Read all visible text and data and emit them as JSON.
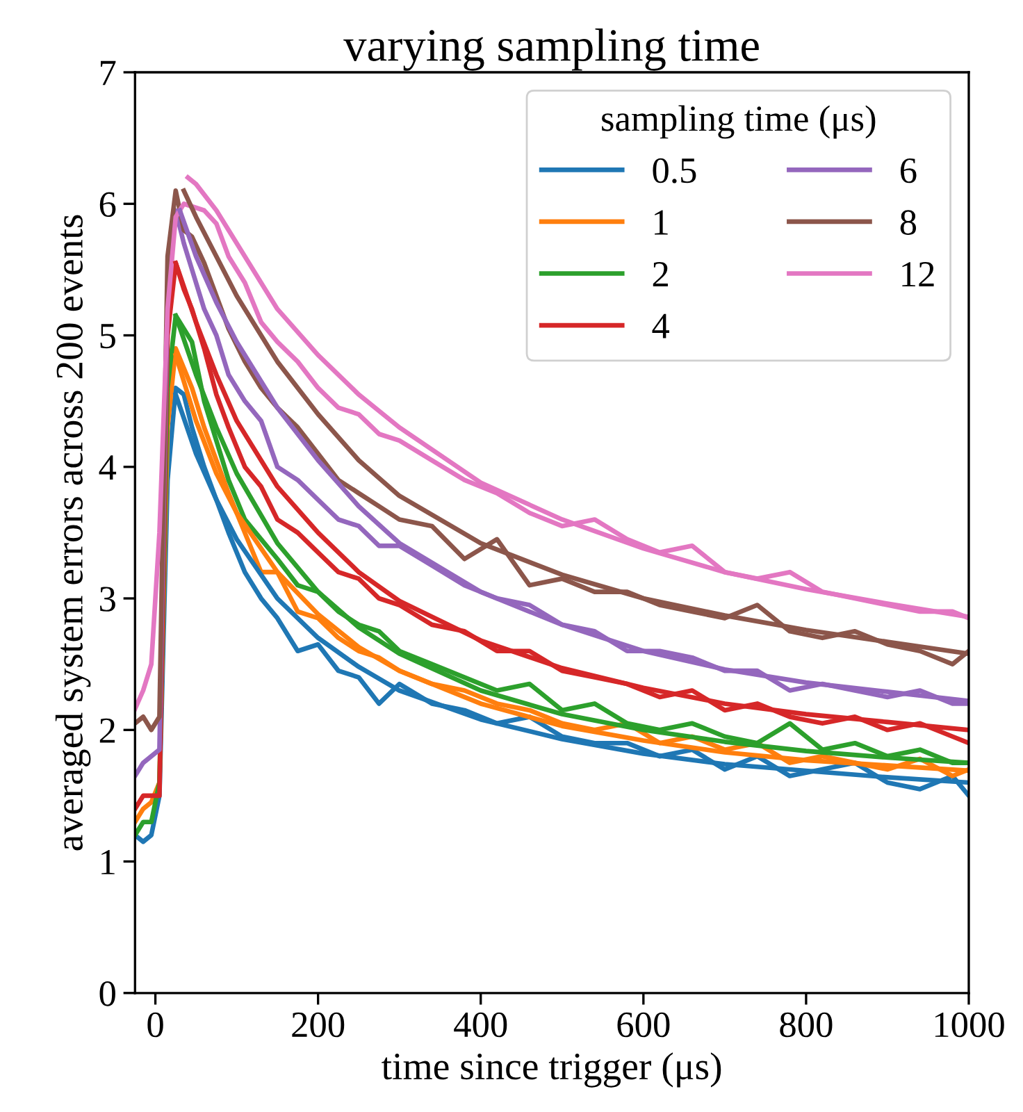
{
  "chart_data": {
    "type": "line",
    "title": "varying sampling time",
    "xlabel": "time since trigger (μs)",
    "ylabel": "averaged system errors across 200 events",
    "legend_title": "sampling time (μs)",
    "legend": "top right",
    "grid": false,
    "marker": "none",
    "line_style": "solid",
    "xlim": [
      -25,
      1000
    ],
    "ylim": [
      0,
      7
    ],
    "xticks": [
      0,
      200,
      400,
      600,
      800,
      1000
    ],
    "yticks": [
      0,
      1,
      2,
      3,
      4,
      5,
      6,
      7
    ],
    "series": [
      {
        "name": "0.5",
        "color": "#1f77b4",
        "x": [
          -25,
          -15,
          -5,
          5,
          15,
          25,
          35,
          45,
          60,
          75,
          90,
          110,
          130,
          150,
          175,
          200,
          225,
          250,
          275,
          300,
          340,
          380,
          420,
          460,
          500,
          540,
          580,
          620,
          660,
          700,
          740,
          780,
          820,
          860,
          900,
          940,
          980,
          1000
        ],
        "values": [
          1.2,
          1.15,
          1.2,
          1.5,
          3.9,
          4.6,
          4.55,
          4.3,
          4.0,
          3.75,
          3.5,
          3.2,
          3.0,
          2.85,
          2.6,
          2.65,
          2.45,
          2.4,
          2.2,
          2.35,
          2.2,
          2.15,
          2.05,
          2.1,
          1.95,
          1.9,
          1.9,
          1.8,
          1.85,
          1.7,
          1.8,
          1.65,
          1.7,
          1.75,
          1.6,
          1.55,
          1.65,
          1.5
        ]
      },
      {
        "name": "1",
        "color": "#ff7f0e",
        "x": [
          -25,
          -15,
          -5,
          5,
          15,
          25,
          35,
          45,
          60,
          75,
          90,
          110,
          130,
          150,
          175,
          200,
          225,
          250,
          275,
          300,
          340,
          380,
          420,
          460,
          500,
          540,
          580,
          620,
          660,
          700,
          740,
          780,
          820,
          860,
          900,
          940,
          980,
          1000
        ],
        "values": [
          1.3,
          1.4,
          1.45,
          1.6,
          4.3,
          4.9,
          4.75,
          4.6,
          4.3,
          4.05,
          3.8,
          3.5,
          3.2,
          3.2,
          2.9,
          2.85,
          2.7,
          2.6,
          2.55,
          2.45,
          2.35,
          2.3,
          2.2,
          2.15,
          2.05,
          2.0,
          2.05,
          1.9,
          1.95,
          1.85,
          1.9,
          1.75,
          1.8,
          1.75,
          1.7,
          1.78,
          1.65,
          1.7
        ]
      },
      {
        "name": "2",
        "color": "#2ca02c",
        "x": [
          -25,
          -15,
          -5,
          5,
          15,
          25,
          35,
          45,
          60,
          75,
          90,
          110,
          130,
          150,
          175,
          200,
          225,
          250,
          275,
          300,
          340,
          380,
          420,
          460,
          500,
          540,
          580,
          620,
          660,
          700,
          740,
          780,
          820,
          860,
          900,
          940,
          980,
          1000
        ],
        "values": [
          1.2,
          1.3,
          1.3,
          1.6,
          4.6,
          5.15,
          5.05,
          4.95,
          4.5,
          4.2,
          3.9,
          3.6,
          3.45,
          3.3,
          3.1,
          3.05,
          2.9,
          2.8,
          2.75,
          2.6,
          2.5,
          2.4,
          2.3,
          2.35,
          2.15,
          2.2,
          2.05,
          2.0,
          2.05,
          1.95,
          1.9,
          2.05,
          1.85,
          1.9,
          1.8,
          1.85,
          1.75,
          1.75
        ]
      },
      {
        "name": "4",
        "color": "#d62728",
        "x": [
          -25,
          -15,
          -5,
          5,
          15,
          25,
          35,
          45,
          60,
          75,
          90,
          110,
          130,
          150,
          175,
          200,
          225,
          250,
          275,
          300,
          340,
          380,
          420,
          460,
          500,
          540,
          580,
          620,
          660,
          700,
          740,
          780,
          820,
          860,
          900,
          940,
          980,
          1000
        ],
        "values": [
          1.4,
          1.5,
          1.5,
          1.5,
          5.0,
          5.55,
          5.35,
          5.2,
          4.9,
          4.55,
          4.3,
          4.0,
          3.85,
          3.6,
          3.5,
          3.35,
          3.2,
          3.15,
          3.0,
          2.95,
          2.8,
          2.75,
          2.6,
          2.6,
          2.45,
          2.4,
          2.35,
          2.25,
          2.3,
          2.15,
          2.2,
          2.1,
          2.05,
          2.1,
          2.0,
          2.05,
          1.95,
          1.9
        ]
      },
      {
        "name": "6",
        "color": "#9467bd",
        "x": [
          -25,
          -15,
          -5,
          5,
          15,
          25,
          35,
          45,
          60,
          75,
          90,
          110,
          130,
          150,
          175,
          200,
          225,
          250,
          275,
          300,
          340,
          380,
          420,
          460,
          500,
          540,
          580,
          620,
          660,
          700,
          740,
          780,
          820,
          860,
          900,
          940,
          980,
          1000
        ],
        "values": [
          1.65,
          1.75,
          1.8,
          1.85,
          5.3,
          5.95,
          5.7,
          5.5,
          5.2,
          5.0,
          4.7,
          4.5,
          4.35,
          4.0,
          3.9,
          3.75,
          3.6,
          3.55,
          3.4,
          3.4,
          3.25,
          3.1,
          3.0,
          2.95,
          2.8,
          2.75,
          2.6,
          2.6,
          2.55,
          2.45,
          2.45,
          2.3,
          2.35,
          2.3,
          2.25,
          2.3,
          2.2,
          2.2
        ]
      },
      {
        "name": "8",
        "color": "#8c564b",
        "x": [
          -25,
          -15,
          -5,
          5,
          15,
          25,
          35,
          45,
          60,
          75,
          90,
          110,
          130,
          150,
          175,
          200,
          225,
          250,
          275,
          300,
          340,
          380,
          420,
          460,
          500,
          540,
          580,
          620,
          660,
          700,
          740,
          780,
          820,
          860,
          900,
          940,
          980,
          1000
        ],
        "values": [
          2.05,
          2.1,
          2.0,
          2.1,
          5.6,
          6.1,
          5.8,
          5.75,
          5.55,
          5.3,
          5.05,
          4.8,
          4.6,
          4.45,
          4.3,
          4.1,
          3.9,
          3.8,
          3.7,
          3.6,
          3.55,
          3.3,
          3.45,
          3.1,
          3.15,
          3.05,
          3.05,
          2.95,
          2.9,
          2.85,
          2.95,
          2.75,
          2.7,
          2.75,
          2.65,
          2.6,
          2.5,
          2.6
        ]
      },
      {
        "name": "12",
        "color": "#e377c2",
        "x": [
          -25,
          -15,
          -5,
          5,
          15,
          25,
          35,
          45,
          60,
          75,
          90,
          110,
          130,
          150,
          175,
          200,
          225,
          250,
          275,
          300,
          340,
          380,
          420,
          460,
          500,
          540,
          580,
          620,
          660,
          700,
          740,
          780,
          820,
          860,
          900,
          940,
          980,
          1000
        ],
        "values": [
          2.16,
          2.3,
          2.5,
          3.5,
          5.2,
          5.9,
          6.0,
          5.98,
          5.95,
          5.85,
          5.6,
          5.4,
          5.1,
          4.95,
          4.8,
          4.6,
          4.45,
          4.4,
          4.25,
          4.2,
          4.05,
          3.9,
          3.8,
          3.65,
          3.55,
          3.6,
          3.45,
          3.35,
          3.4,
          3.2,
          3.15,
          3.2,
          3.05,
          3.0,
          2.95,
          2.9,
          2.9,
          2.85
        ]
      },
      {
        "color": "#1f77b4",
        "x": [
          25,
          50,
          75,
          100,
          150,
          200,
          250,
          300,
          400,
          500,
          600,
          700,
          800,
          900,
          1000
        ],
        "values": [
          4.55,
          4.1,
          3.75,
          3.45,
          3.0,
          2.7,
          2.48,
          2.3,
          2.08,
          1.93,
          1.82,
          1.74,
          1.69,
          1.64,
          1.6
        ]
      },
      {
        "color": "#ff7f0e",
        "x": [
          25,
          50,
          75,
          100,
          150,
          200,
          250,
          300,
          400,
          500,
          600,
          700,
          800,
          900,
          1000
        ],
        "values": [
          4.85,
          4.35,
          3.95,
          3.65,
          3.2,
          2.88,
          2.63,
          2.45,
          2.2,
          2.03,
          1.92,
          1.83,
          1.77,
          1.73,
          1.69
        ]
      },
      {
        "color": "#2ca02c",
        "x": [
          25,
          50,
          75,
          100,
          150,
          200,
          250,
          300,
          400,
          500,
          600,
          700,
          800,
          900,
          1000
        ],
        "values": [
          5.15,
          4.7,
          4.3,
          3.95,
          3.42,
          3.05,
          2.78,
          2.58,
          2.3,
          2.12,
          2.0,
          1.91,
          1.84,
          1.79,
          1.75
        ]
      },
      {
        "color": "#d62728",
        "x": [
          25,
          50,
          75,
          100,
          150,
          200,
          250,
          300,
          400,
          500,
          600,
          700,
          800,
          900,
          1000
        ],
        "values": [
          5.55,
          5.1,
          4.7,
          4.35,
          3.85,
          3.5,
          3.2,
          2.98,
          2.68,
          2.47,
          2.32,
          2.2,
          2.12,
          2.06,
          2.0
        ]
      },
      {
        "color": "#9467bd",
        "x": [
          30,
          50,
          75,
          100,
          150,
          200,
          250,
          300,
          400,
          500,
          600,
          700,
          800,
          900,
          1000
        ],
        "values": [
          5.95,
          5.6,
          5.25,
          4.95,
          4.45,
          4.05,
          3.7,
          3.42,
          3.05,
          2.8,
          2.6,
          2.46,
          2.36,
          2.29,
          2.22
        ]
      },
      {
        "color": "#8c564b",
        "x": [
          35,
          50,
          75,
          100,
          150,
          200,
          250,
          300,
          400,
          500,
          600,
          700,
          800,
          900,
          1000
        ],
        "values": [
          6.1,
          5.9,
          5.6,
          5.3,
          4.8,
          4.4,
          4.05,
          3.78,
          3.42,
          3.18,
          3.0,
          2.87,
          2.76,
          2.67,
          2.58
        ]
      },
      {
        "color": "#e377c2",
        "x": [
          40,
          50,
          75,
          100,
          150,
          200,
          250,
          300,
          400,
          500,
          600,
          700,
          800,
          900,
          1000
        ],
        "values": [
          6.2,
          6.15,
          5.95,
          5.7,
          5.2,
          4.85,
          4.55,
          4.3,
          3.88,
          3.6,
          3.38,
          3.2,
          3.07,
          2.96,
          2.86
        ]
      }
    ]
  }
}
